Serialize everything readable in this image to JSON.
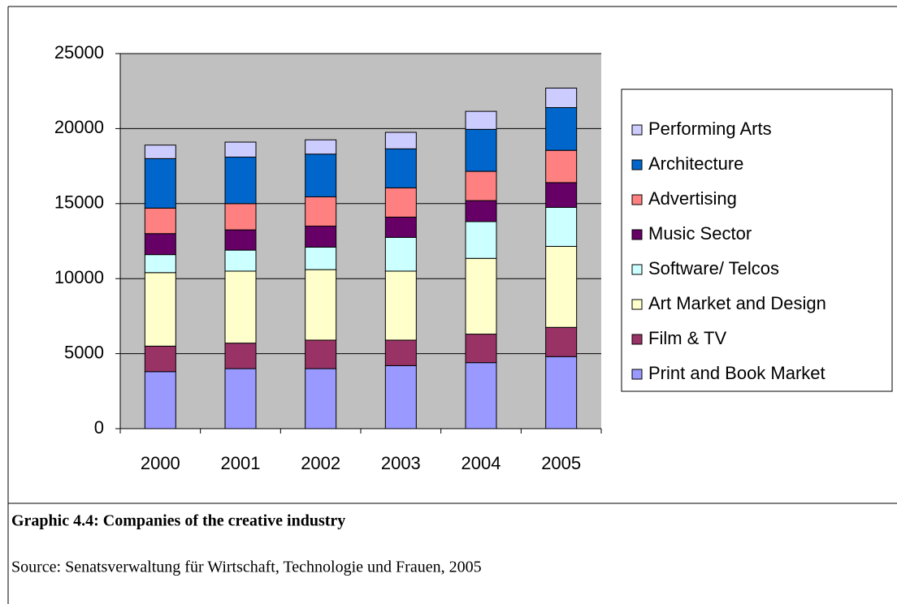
{
  "chart_data": {
    "type": "bar",
    "stacked": true,
    "categories": [
      "2000",
      "2001",
      "2002",
      "2003",
      "2004",
      "2005"
    ],
    "series": [
      {
        "name": "Print and Book Market",
        "color": "#9999ff",
        "values": [
          3800,
          4000,
          4000,
          4200,
          4400,
          4800
        ]
      },
      {
        "name": "Film & TV",
        "color": "#993366",
        "values": [
          1700,
          1700,
          1900,
          1700,
          1900,
          1950
        ]
      },
      {
        "name": "Art Market and Design",
        "color": "#ffffcc",
        "values": [
          4900,
          4800,
          4700,
          4600,
          5050,
          5400
        ]
      },
      {
        "name": "Software/ Telcos",
        "color": "#ccffff",
        "values": [
          1200,
          1400,
          1500,
          2250,
          2450,
          2600
        ]
      },
      {
        "name": "Music Sector",
        "color": "#660066",
        "values": [
          1400,
          1350,
          1400,
          1350,
          1400,
          1650
        ]
      },
      {
        "name": "Advertising",
        "color": "#ff8080",
        "values": [
          1700,
          1750,
          1950,
          1950,
          1950,
          2150
        ]
      },
      {
        "name": "Architecture",
        "color": "#0066cc",
        "values": [
          3300,
          3100,
          2850,
          2600,
          2800,
          2850
        ]
      },
      {
        "name": "Performing Arts",
        "color": "#ccccff",
        "values": [
          900,
          1000,
          950,
          1100,
          1200,
          1300
        ]
      }
    ],
    "ylim": [
      0,
      25000
    ],
    "yticks": [
      0,
      5000,
      10000,
      15000,
      20000,
      25000
    ],
    "grid": true,
    "legend": "right",
    "plot_background": "#c0c0c0"
  },
  "caption": "Graphic 4.4: Companies of the creative industry",
  "source": "Source: Senatsverwaltung für Wirtschaft, Technologie und Frauen, 2005"
}
